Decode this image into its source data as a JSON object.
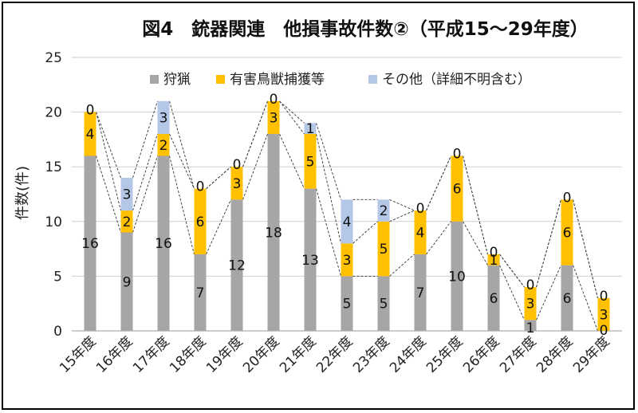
{
  "chart_data": {
    "type": "bar",
    "stacked": true,
    "title": "図4　銃器関連　他損事故件数②（平成15～29年度）",
    "ylabel": "件数(件)",
    "xlabel": "",
    "ylim": [
      0,
      25
    ],
    "yticks": [
      0,
      5,
      10,
      15,
      20,
      25
    ],
    "grid": true,
    "legend_position": "top",
    "categories": [
      "15年度",
      "16年度",
      "17年度",
      "18年度",
      "19年度",
      "20年度",
      "21年度",
      "22年度",
      "23年度",
      "24年度",
      "25年度",
      "26年度",
      "27年度",
      "28年度",
      "29年度"
    ],
    "series": [
      {
        "name": "狩猟",
        "color": "#a6a6a6",
        "values": [
          16,
          9,
          16,
          7,
          12,
          18,
          13,
          5,
          5,
          7,
          10,
          6,
          1,
          6,
          0
        ]
      },
      {
        "name": "有害鳥獣捕獲等",
        "color": "#ffc000",
        "values": [
          4,
          2,
          2,
          6,
          3,
          3,
          5,
          3,
          5,
          4,
          6,
          1,
          3,
          6,
          3
        ]
      },
      {
        "name": "その他（詳細不明含む）",
        "color": "#b4c7e7",
        "values": [
          0,
          3,
          3,
          0,
          0,
          0,
          1,
          4,
          2,
          0,
          0,
          0,
          0,
          0,
          0
        ]
      }
    ]
  }
}
